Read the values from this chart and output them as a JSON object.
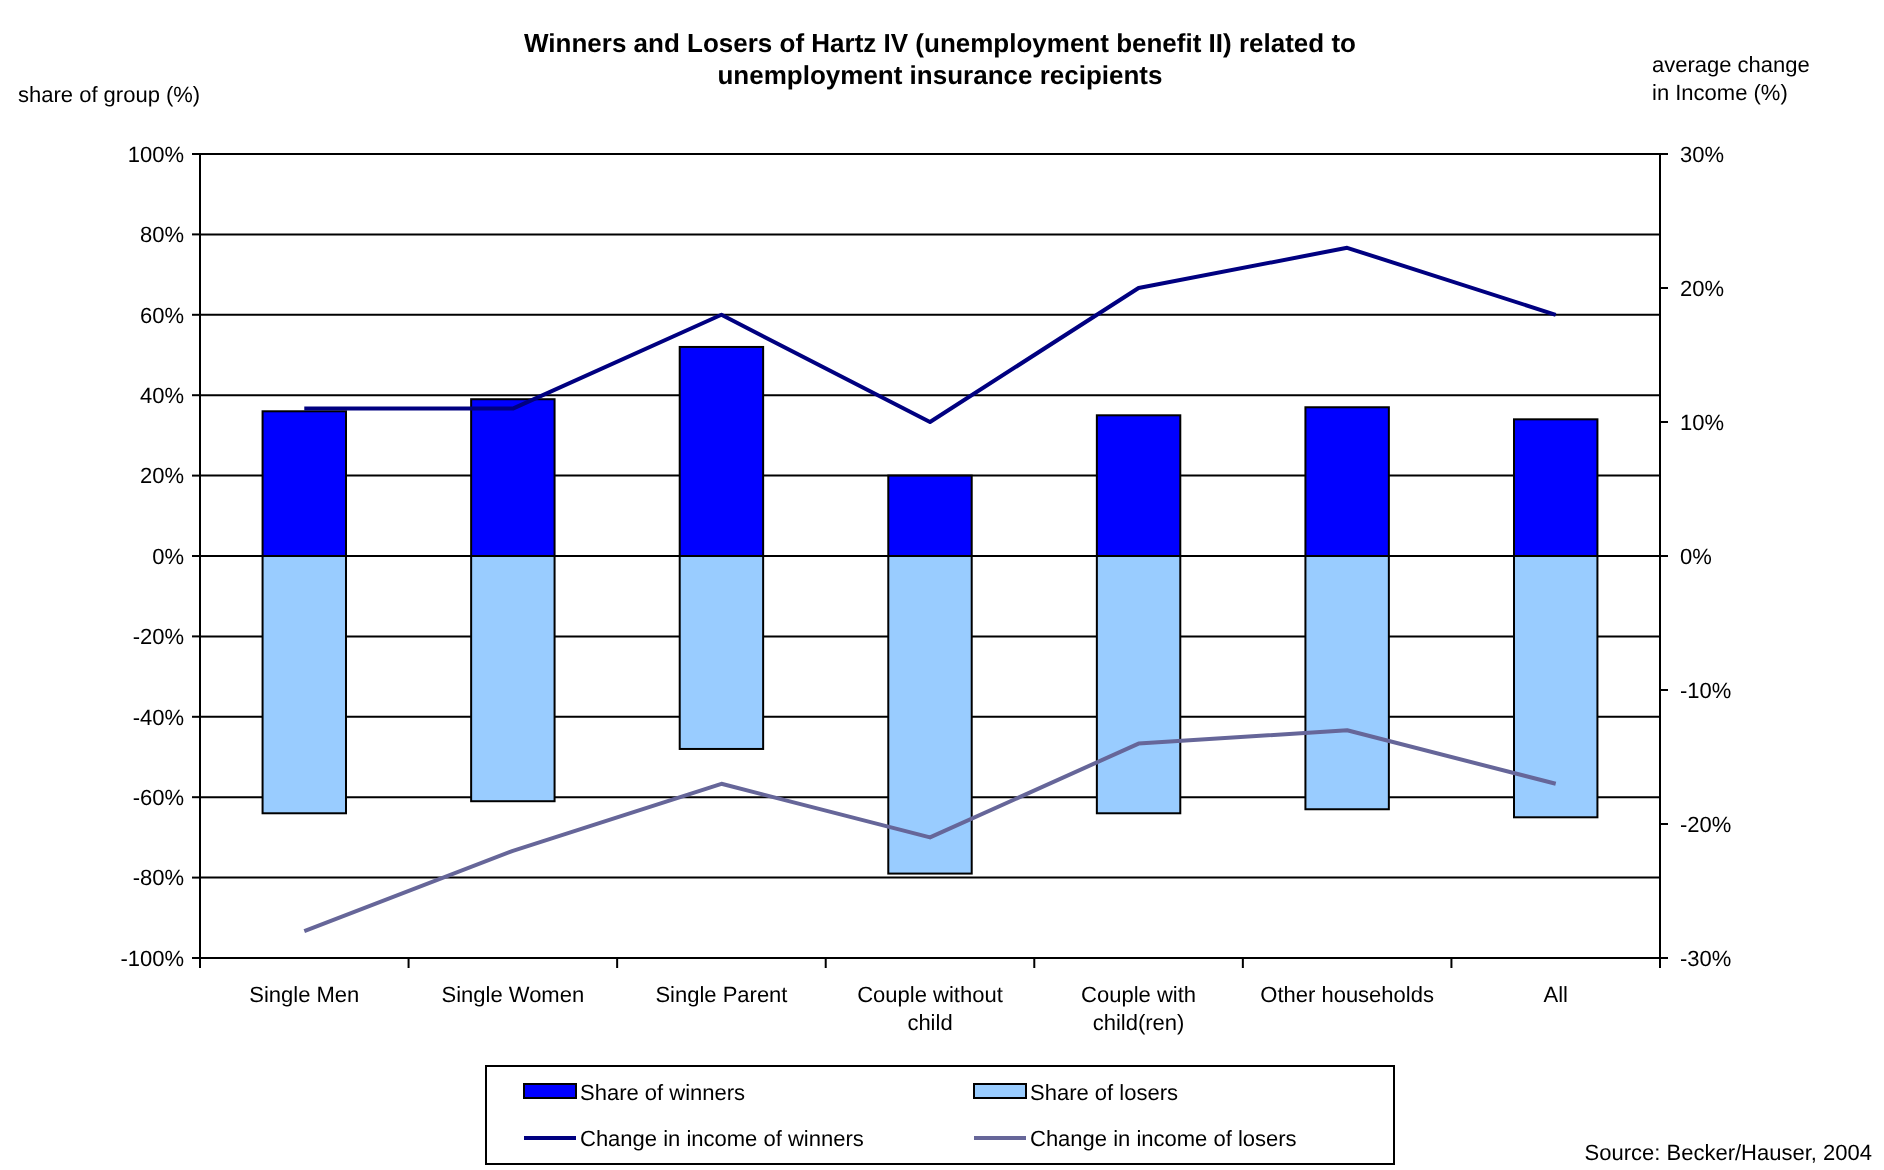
{
  "chart_data": {
    "type": "bar",
    "title": "Winners and Losers of Hartz IV (unemployment benefit II) related to unemployment insurance recipients",
    "ylabel": "share of group (%)",
    "y2label": "average change in Income (%)",
    "categories": [
      "Single Men",
      "Single Women",
      "Single Parent",
      "Couple without child",
      "Couple with child(ren)",
      "Other households",
      "All"
    ],
    "stacked": true,
    "series": [
      {
        "name": "Share of winners",
        "color": "#0000ff",
        "values": [
          36,
          39,
          52,
          20,
          35,
          37,
          34
        ]
      },
      {
        "name": "Share of losers",
        "color": "#99ccff",
        "values": [
          -64,
          -61,
          -48,
          -79,
          -64,
          -63,
          -65
        ]
      },
      {
        "name": "Change in income of winners",
        "type": "line",
        "axis": "y2",
        "color": "#000080",
        "values": [
          11,
          11,
          18,
          10,
          20,
          23,
          18
        ]
      },
      {
        "name": "Change in income of losers",
        "type": "line",
        "axis": "y2",
        "color": "#666699",
        "values": [
          -28,
          -22,
          -17,
          -21,
          -14,
          -13,
          -17
        ]
      }
    ],
    "ylim": [
      -100,
      100
    ],
    "yticks": [
      {
        "value": -100,
        "label": "-100%"
      },
      {
        "value": -80,
        "label": "-80%"
      },
      {
        "value": -60,
        "label": "-60%"
      },
      {
        "value": -40,
        "label": "-40%"
      },
      {
        "value": -20,
        "label": "-20%"
      },
      {
        "value": 0,
        "label": "0%"
      },
      {
        "value": 20,
        "label": "20%"
      },
      {
        "value": 40,
        "label": "40%"
      },
      {
        "value": 60,
        "label": "60%"
      },
      {
        "value": 80,
        "label": "80%"
      },
      {
        "value": 100,
        "label": "100%"
      }
    ],
    "y2lim": [
      -30,
      30
    ],
    "y2ticks": [
      {
        "value": -30,
        "label": "-30%"
      },
      {
        "value": -20,
        "label": "-20%"
      },
      {
        "value": -10,
        "label": "-10%"
      },
      {
        "value": 0,
        "label": "0%"
      },
      {
        "value": 10,
        "label": "10%"
      },
      {
        "value": 20,
        "label": "20%"
      },
      {
        "value": 30,
        "label": "30%"
      }
    ],
    "grid": "y",
    "legend": "bottom",
    "line_style": "solid",
    "marker": "none",
    "annotations": [
      "Source: Becker/Hauser, 2004"
    ]
  }
}
